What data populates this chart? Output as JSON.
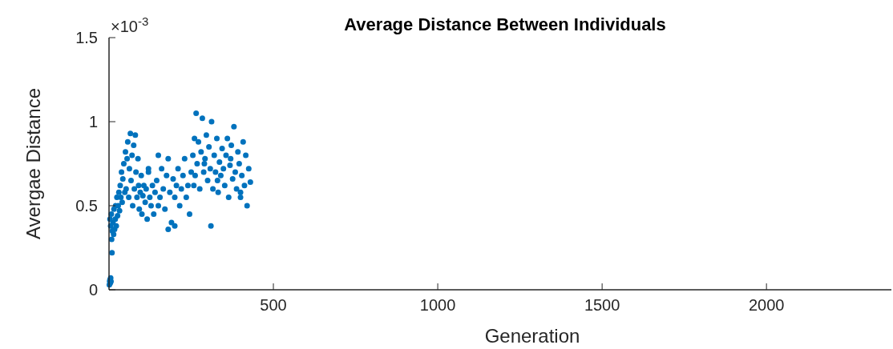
{
  "chart_data": {
    "type": "scatter",
    "title": "Average Distance Between Individuals",
    "xlabel": "Generation",
    "ylabel": "Avergae Distance",
    "annotations": [
      "×10$^{-3}$"
    ],
    "xlim": [
      0,
      2380
    ],
    "xticks": [
      500,
      1000,
      1500,
      2000
    ],
    "ylim": [
      0,
      1.5
    ],
    "yticks": [
      0,
      0.5,
      1,
      1.5
    ],
    "marker": "circle",
    "grid": false,
    "series": [
      {
        "color": "#0072bd",
        "x": [
          1,
          2,
          3,
          4,
          5,
          6,
          3,
          5,
          7,
          8,
          9,
          10,
          12,
          14,
          15,
          17,
          19,
          20,
          22,
          24,
          26,
          28,
          30,
          32,
          34,
          36,
          38,
          40,
          42,
          45,
          48,
          50,
          52,
          55,
          57,
          60,
          62,
          65,
          67,
          70,
          72,
          75,
          77,
          80,
          82,
          85,
          88,
          90,
          92,
          95,
          98,
          100,
          103,
          106,
          110,
          113,
          116,
          120,
          124,
          128,
          132,
          136,
          140,
          145,
          150,
          155,
          160,
          165,
          170,
          175,
          180,
          185,
          190,
          195,
          200,
          205,
          210,
          215,
          220,
          225,
          230,
          235,
          240,
          245,
          250,
          255,
          258,
          262,
          265,
          268,
          272,
          276,
          280,
          284,
          288,
          292,
          296,
          300,
          304,
          308,
          312,
          316,
          320,
          324,
          328,
          332,
          336,
          340,
          344,
          348,
          352,
          356,
          360,
          364,
          368,
          372,
          376,
          380,
          384,
          388,
          392,
          396,
          400,
          404,
          408,
          412,
          416,
          420,
          425,
          430,
          180,
          200,
          310,
          150,
          120,
          260,
          330,
          370,
          400,
          290
        ],
        "values": [
          0.03,
          0.05,
          0.06,
          0.04,
          0.07,
          0.05,
          0.42,
          0.38,
          0.45,
          0.3,
          0.22,
          0.35,
          0.4,
          0.33,
          0.48,
          0.36,
          0.42,
          0.5,
          0.38,
          0.55,
          0.44,
          0.5,
          0.58,
          0.47,
          0.62,
          0.55,
          0.7,
          0.52,
          0.66,
          0.75,
          0.58,
          0.82,
          0.6,
          0.78,
          0.88,
          0.55,
          0.72,
          0.93,
          0.65,
          0.8,
          0.5,
          0.86,
          0.6,
          0.92,
          0.7,
          0.55,
          0.78,
          0.62,
          0.48,
          0.58,
          0.68,
          0.45,
          0.56,
          0.62,
          0.52,
          0.6,
          0.42,
          0.7,
          0.55,
          0.5,
          0.62,
          0.45,
          0.58,
          0.65,
          0.5,
          0.55,
          0.72,
          0.6,
          0.48,
          0.68,
          0.78,
          0.58,
          0.4,
          0.66,
          0.55,
          0.62,
          0.72,
          0.5,
          0.6,
          0.68,
          0.78,
          0.55,
          0.62,
          0.45,
          0.7,
          0.8,
          0.62,
          0.68,
          1.05,
          0.75,
          0.88,
          0.6,
          0.82,
          1.02,
          0.7,
          0.78,
          0.92,
          0.65,
          0.85,
          0.72,
          1.0,
          0.6,
          0.8,
          0.7,
          0.9,
          0.58,
          0.76,
          0.68,
          0.84,
          0.72,
          0.62,
          0.8,
          0.9,
          0.55,
          0.74,
          0.86,
          0.66,
          0.97,
          0.7,
          0.6,
          0.82,
          0.75,
          0.55,
          0.68,
          0.88,
          0.62,
          0.8,
          0.5,
          0.72,
          0.64,
          0.36,
          0.38,
          0.38,
          0.8,
          0.72,
          0.9,
          0.65,
          0.78,
          0.58,
          0.75
        ]
      }
    ]
  }
}
